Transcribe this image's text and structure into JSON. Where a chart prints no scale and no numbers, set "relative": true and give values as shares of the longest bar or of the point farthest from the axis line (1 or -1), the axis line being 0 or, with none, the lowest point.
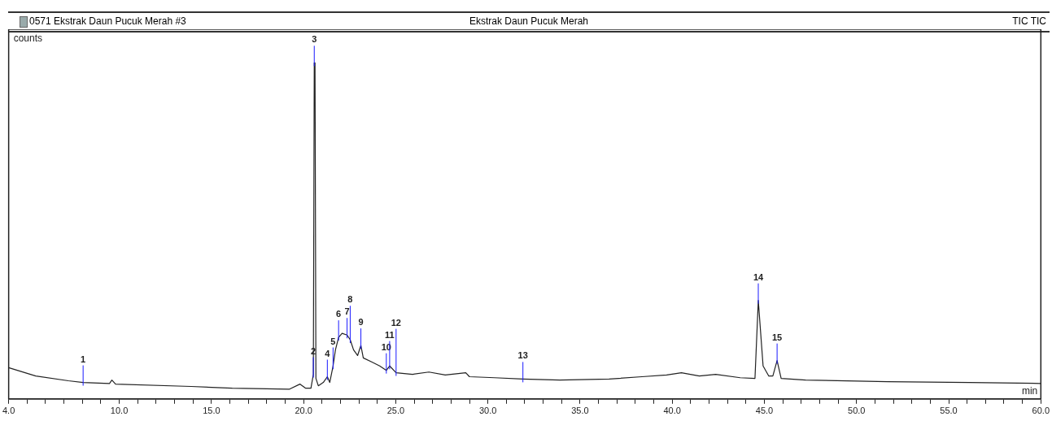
{
  "chart_data": {
    "type": "line",
    "title": "Ekstrak Daun Pucuk Merah",
    "subtitle": "0571 Ekstrak Daun Pucuk Merah #3",
    "xlabel": "min",
    "ylabel": "counts",
    "relative": true,
    "legend": false,
    "grid": false,
    "marker": "none",
    "line_style": "solid",
    "x": [
      4.0,
      5.47,
      7.24,
      8.04,
      9.47,
      9.6,
      9.8,
      13.9,
      16.13,
      19.24,
      19.8,
      20.1,
      20.4,
      20.53,
      20.58,
      20.62,
      20.67,
      20.8,
      21.07,
      21.29,
      21.42,
      21.6,
      21.73,
      21.9,
      22.09,
      22.36,
      22.53,
      22.71,
      22.93,
      23.11,
      23.24,
      23.69,
      24.13,
      24.49,
      24.67,
      25.02,
      25.91,
      26.8,
      27.69,
      28.8,
      29.0,
      30.36,
      31.9,
      33.9,
      36.58,
      38.36,
      39.7,
      40.5,
      41.47,
      42.36,
      43.69,
      44.49,
      44.67,
      44.93,
      45.24,
      45.46,
      45.69,
      45.91,
      47.24,
      51.69,
      56.13,
      60.0
    ],
    "series": [
      {
        "color": "#222222",
        "values": [
          0.093,
          0.068,
          0.054,
          0.049,
          0.046,
          0.056,
          0.044,
          0.037,
          0.032,
          0.029,
          0.044,
          0.032,
          0.032,
          0.073,
          1.0,
          1.0,
          0.061,
          0.039,
          0.049,
          0.066,
          0.049,
          0.098,
          0.146,
          0.183,
          0.195,
          0.19,
          0.176,
          0.146,
          0.129,
          0.159,
          0.122,
          0.11,
          0.098,
          0.085,
          0.098,
          0.078,
          0.073,
          0.08,
          0.071,
          0.078,
          0.066,
          0.063,
          0.059,
          0.056,
          0.059,
          0.066,
          0.071,
          0.078,
          0.068,
          0.073,
          0.063,
          0.061,
          0.293,
          0.098,
          0.068,
          0.068,
          0.114,
          0.061,
          0.056,
          0.051,
          0.049,
          0.046
        ]
      }
    ],
    "xlim": [
      4.0,
      60.0
    ],
    "xticks": [
      {
        "value": 4,
        "label": "4.0"
      },
      {
        "value": 5,
        "label": null
      },
      {
        "value": 6,
        "label": null
      },
      {
        "value": 7,
        "label": null
      },
      {
        "value": 8,
        "label": null
      },
      {
        "value": 9,
        "label": null
      },
      {
        "value": 10,
        "label": "10.0"
      },
      {
        "value": 11,
        "label": null
      },
      {
        "value": 12,
        "label": null
      },
      {
        "value": 13,
        "label": null
      },
      {
        "value": 14,
        "label": null
      },
      {
        "value": 15,
        "label": "15.0"
      },
      {
        "value": 16,
        "label": null
      },
      {
        "value": 17,
        "label": null
      },
      {
        "value": 18,
        "label": null
      },
      {
        "value": 19,
        "label": null
      },
      {
        "value": 20,
        "label": "20.0"
      },
      {
        "value": 21,
        "label": null
      },
      {
        "value": 22,
        "label": null
      },
      {
        "value": 23,
        "label": null
      },
      {
        "value": 24,
        "label": null
      },
      {
        "value": 25,
        "label": "25.0"
      },
      {
        "value": 26,
        "label": null
      },
      {
        "value": 27,
        "label": null
      },
      {
        "value": 28,
        "label": null
      },
      {
        "value": 29,
        "label": null
      },
      {
        "value": 30,
        "label": "30.0"
      },
      {
        "value": 31,
        "label": null
      },
      {
        "value": 32,
        "label": null
      },
      {
        "value": 33,
        "label": null
      },
      {
        "value": 34,
        "label": null
      },
      {
        "value": 35,
        "label": "35.0"
      },
      {
        "value": 36,
        "label": null
      },
      {
        "value": 37,
        "label": null
      },
      {
        "value": 38,
        "label": null
      },
      {
        "value": 39,
        "label": null
      },
      {
        "value": 40,
        "label": "40.0"
      },
      {
        "value": 41,
        "label": null
      },
      {
        "value": 42,
        "label": null
      },
      {
        "value": 43,
        "label": null
      },
      {
        "value": 44,
        "label": null
      },
      {
        "value": 45,
        "label": "45.0"
      },
      {
        "value": 46,
        "label": null
      },
      {
        "value": 47,
        "label": null
      },
      {
        "value": 48,
        "label": null
      },
      {
        "value": 49,
        "label": null
      },
      {
        "value": 50,
        "label": "50.0"
      },
      {
        "value": 51,
        "label": null
      },
      {
        "value": 52,
        "label": null
      },
      {
        "value": 53,
        "label": null
      },
      {
        "value": 54,
        "label": null
      },
      {
        "value": 55,
        "label": "55.0"
      },
      {
        "value": 56,
        "label": null
      },
      {
        "value": 57,
        "label": null
      },
      {
        "value": 58,
        "label": null
      },
      {
        "value": 59,
        "label": null
      },
      {
        "value": 60,
        "label": "60.0"
      }
    ],
    "annotations": [
      "TIC TIC",
      {
        "text": "1",
        "x": 8.04,
        "y": 0.049
      },
      {
        "text": "2",
        "x": 20.53,
        "y": 0.073
      },
      {
        "text": "3",
        "x": 20.58,
        "y": 1.0
      },
      {
        "text": "4",
        "x": 21.29,
        "y": 0.066
      },
      {
        "text": "5",
        "x": 21.6,
        "y": 0.098
      },
      {
        "text": "6",
        "x": 21.9,
        "y": 0.183
      },
      {
        "text": "7",
        "x": 22.36,
        "y": 0.19
      },
      {
        "text": "8",
        "x": 22.53,
        "y": 0.176
      },
      {
        "text": "9",
        "x": 23.11,
        "y": 0.159
      },
      {
        "text": "10",
        "x": 24.49,
        "y": 0.085
      },
      {
        "text": "11",
        "x": 24.67,
        "y": 0.098
      },
      {
        "text": "12",
        "x": 25.02,
        "y": 0.078
      },
      {
        "text": "13",
        "x": 31.9,
        "y": 0.059
      },
      {
        "text": "14",
        "x": 44.67,
        "y": 0.293
      },
      {
        "text": "15",
        "x": 45.69,
        "y": 0.114
      }
    ]
  }
}
